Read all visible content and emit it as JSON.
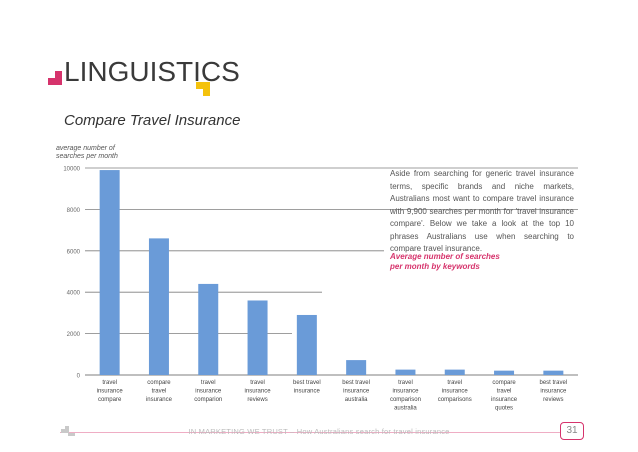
{
  "header": {
    "section_title": "LINGUISTICS"
  },
  "chart_title": "Compare Travel Insurance",
  "side_panel": {
    "text": "Aside from searching for generic travel insurance terms, specific brands and niche markets, Australians most want to compare travel insurance with 9,900 searches per month for 'travel insurance compare'. Below we take a look at the top 10 phrases Australians use when searching to compare travel insurance.",
    "label": "Average number of searches per month by keywords"
  },
  "footer": {
    "text": "IN MARKETING WE TRUST – How Australians search for travel insurance",
    "page_number": "31"
  },
  "colors": {
    "bar": "#6a9bd8",
    "accent": "#d6336c",
    "accent2": "#f4c20d",
    "grid": "#7f7f7f"
  },
  "chart_data": {
    "type": "bar",
    "ylabel": "average number of searches per month",
    "ylim": [
      0,
      10000
    ],
    "yticks": [
      "0",
      "2000",
      "4000",
      "6000",
      "8000",
      "10000"
    ],
    "categories": [
      [
        "travel",
        "insurance",
        "compare"
      ],
      [
        "compare",
        "travel",
        "insurance"
      ],
      [
        "travel",
        "insurance",
        "comparion"
      ],
      [
        "travel",
        "insurance",
        "reviews"
      ],
      [
        "best travel",
        "insurance"
      ],
      [
        "best travel",
        "insurance",
        "australia"
      ],
      [
        "travel",
        "insurance",
        "comparison",
        "australia"
      ],
      [
        "travel",
        "insurance",
        "comparisons"
      ],
      [
        "compare",
        "travel",
        "insurance",
        "quotes"
      ],
      [
        "best travel",
        "insurance",
        "reviews"
      ]
    ],
    "values": [
      9900,
      6600,
      4400,
      3600,
      2900,
      720,
      260,
      260,
      210,
      210
    ]
  }
}
